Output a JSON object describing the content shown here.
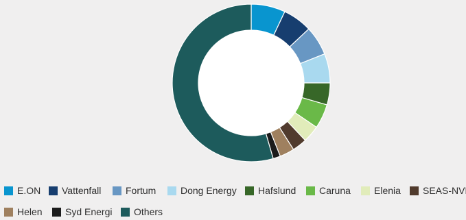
{
  "chart_data": {
    "type": "pie",
    "title": "",
    "categories": [
      "E.ON",
      "Vattenfall",
      "Fortum",
      "Dong Energy",
      "Hafslund",
      "Caruna",
      "Elenia",
      "SEAS-NVE",
      "Helen",
      "Syd Energi",
      "Others"
    ],
    "values": [
      7,
      6,
      6,
      6,
      4.5,
      5,
      3.5,
      3,
      3,
      1.5,
      54.5
    ],
    "colors": [
      "#0995cf",
      "#173e6f",
      "#6897c3",
      "#a9d9ef",
      "#376728",
      "#6ab948",
      "#e1ecba",
      "#513b2d",
      "#9f805f",
      "#1c1c1c",
      "#1d5b5c"
    ],
    "legend_position": "bottom",
    "grid": false
  }
}
